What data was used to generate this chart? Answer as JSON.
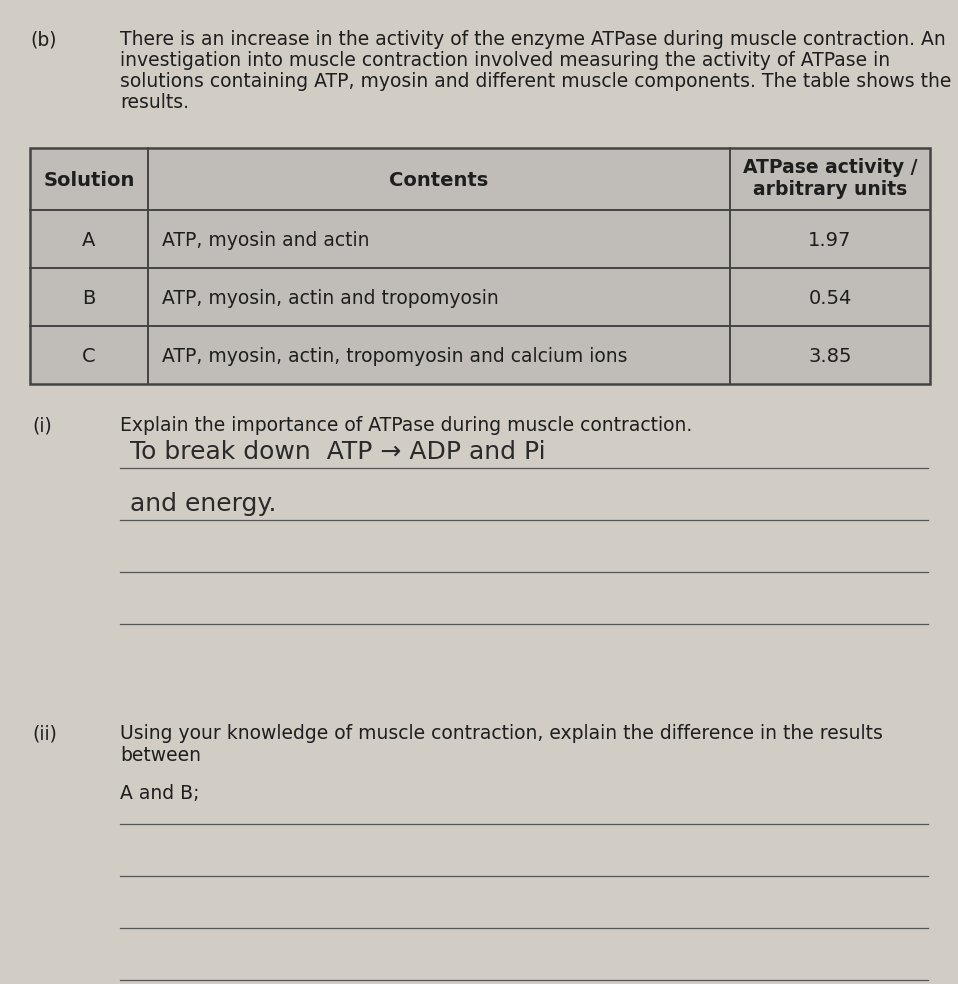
{
  "bg_color": "#c8c4be",
  "part_label": "(b)",
  "intro_text_lines": [
    "There is an increase in the activity of the enzyme ATPase during muscle contraction. An",
    "investigation into muscle contraction involved measuring the activity of ATPase in",
    "solutions containing ATP, myosin and different muscle components. The table shows the",
    "results."
  ],
  "table_headers": [
    "Solution",
    "Contents",
    "ATPase activity /\narbitrary units"
  ],
  "table_rows": [
    [
      "A",
      "ATP, myosin and actin",
      "1.97"
    ],
    [
      "B",
      "ATP, myosin, actin and tropomyosin",
      "0.54"
    ],
    [
      "C",
      "ATP, myosin, actin, tropomyosin and calcium ions",
      "3.85"
    ]
  ],
  "q_i_label": "(i)",
  "q_i_text": "Explain the importance of ATPase during muscle contraction.",
  "handwritten_line1": "To break down  ATP → ADP and Pi",
  "handwritten_line2": "and energy.",
  "q_ii_label": "(ii)",
  "q_ii_text_line1": "Using your knowledge of muscle contraction, explain the difference in the results",
  "q_ii_text_line2": "between",
  "q_ii_subtext": "A and B;",
  "text_color": "#1e1e1e",
  "line_color": "#555555",
  "table_line_color": "#444444",
  "handwritten_color": "#2a2a2a"
}
